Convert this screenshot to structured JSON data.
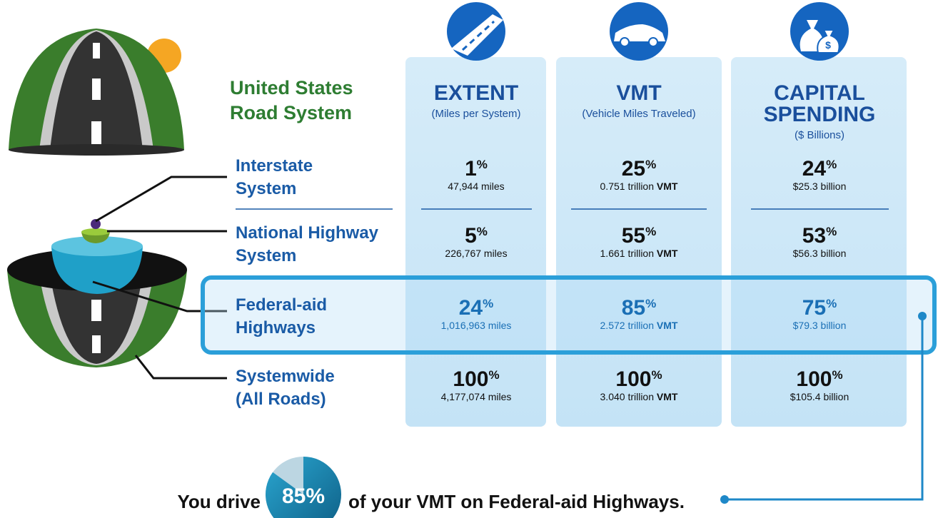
{
  "title": [
    "United States",
    "Road System"
  ],
  "columns": [
    {
      "title": [
        "EXTENT"
      ],
      "subtitle": "(Miles per System)"
    },
    {
      "title": [
        "VMT"
      ],
      "subtitle": "(Vehicle Miles Traveled)"
    },
    {
      "title": [
        "CAPITAL",
        "SPENDING"
      ],
      "subtitle": "($ Billions)"
    }
  ],
  "rows": [
    {
      "label": [
        "Interstate",
        "System"
      ],
      "cells": [
        {
          "value": "1",
          "unit": "%",
          "detail": "47,944 miles"
        },
        {
          "value": "25",
          "unit": "%",
          "detail": "0.751 trillion",
          "bold": "VMT"
        },
        {
          "value": "24",
          "unit": "%",
          "detail": "$25.3 billion"
        }
      ]
    },
    {
      "label": [
        "National Highway",
        "System"
      ],
      "cells": [
        {
          "value": "5",
          "unit": "%",
          "detail": "226,767 miles"
        },
        {
          "value": "55",
          "unit": "%",
          "detail": "1.661 trillion",
          "bold": "VMT"
        },
        {
          "value": "53",
          "unit": "%",
          "detail": "$56.3 billion"
        }
      ]
    },
    {
      "label": [
        "Federal-aid",
        "Highways"
      ],
      "highlight": true,
      "cells": [
        {
          "value": "24",
          "unit": "%",
          "detail": "1,016,963 miles"
        },
        {
          "value": "85",
          "unit": "%",
          "detail": "2.572 trillion",
          "bold": "VMT"
        },
        {
          "value": "75",
          "unit": "%",
          "detail": "$79.3 billion"
        }
      ]
    },
    {
      "label": [
        "Systemwide",
        "(All Roads)"
      ],
      "cells": [
        {
          "value": "100",
          "unit": "%",
          "detail": "4,177,074 miles"
        },
        {
          "value": "100",
          "unit": "%",
          "detail": "3.040 trillion",
          "bold": "VMT"
        },
        {
          "value": "100",
          "unit": "%",
          "detail": "$105.4 billion"
        }
      ]
    }
  ],
  "footer": {
    "prefix": "You drive",
    "pie": {
      "value": 85,
      "label": "85%"
    },
    "suffix": "of your VMT on Federal-aid Highways."
  }
}
